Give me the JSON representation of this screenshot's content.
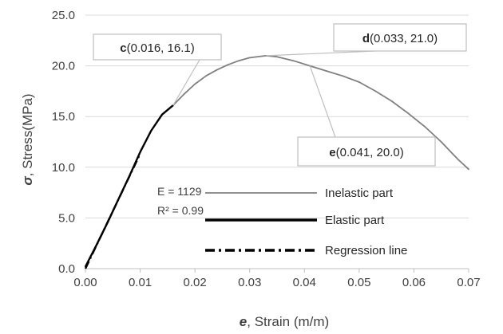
{
  "chart_data": {
    "type": "line",
    "xlabel_symbol": "e",
    "xlabel_text": ", Strain (m/m)",
    "ylabel_symbol": "σ",
    "ylabel_text": ", Stress(MPa)",
    "xlim": [
      0,
      0.07
    ],
    "ylim": [
      0,
      25
    ],
    "x_ticks": [
      {
        "value": 0,
        "label": "0.00"
      },
      {
        "value": 0.01,
        "label": "0.01"
      },
      {
        "value": 0.02,
        "label": "0.02"
      },
      {
        "value": 0.03,
        "label": "0.03"
      },
      {
        "value": 0.04,
        "label": "0.04"
      },
      {
        "value": 0.05,
        "label": "0.05"
      },
      {
        "value": 0.06,
        "label": "0.06"
      },
      {
        "value": 0.07,
        "label": "0.07"
      }
    ],
    "y_ticks": [
      {
        "value": 0,
        "label": "0.0"
      },
      {
        "value": 5,
        "label": "5.0"
      },
      {
        "value": 10,
        "label": "10.0"
      },
      {
        "value": 15,
        "label": "15.0"
      },
      {
        "value": 20,
        "label": "20.0"
      },
      {
        "value": 25,
        "label": "25.0"
      }
    ],
    "grid": "horizontal",
    "series": [
      {
        "name": "Inelastic part",
        "color": "#808080",
        "style": "solid",
        "points": [
          [
            0.016,
            16.1
          ],
          [
            0.018,
            17.2
          ],
          [
            0.02,
            18.2
          ],
          [
            0.022,
            19.0
          ],
          [
            0.024,
            19.6
          ],
          [
            0.026,
            20.1
          ],
          [
            0.028,
            20.5
          ],
          [
            0.03,
            20.8
          ],
          [
            0.033,
            21.0
          ],
          [
            0.035,
            20.9
          ],
          [
            0.038,
            20.5
          ],
          [
            0.041,
            20.0
          ],
          [
            0.044,
            19.5
          ],
          [
            0.047,
            19.0
          ],
          [
            0.05,
            18.4
          ],
          [
            0.053,
            17.5
          ],
          [
            0.056,
            16.5
          ],
          [
            0.059,
            15.3
          ],
          [
            0.062,
            14.0
          ],
          [
            0.065,
            12.5
          ],
          [
            0.068,
            10.8
          ],
          [
            0.07,
            9.8
          ]
        ]
      },
      {
        "name": "Elastic part",
        "color": "#000000",
        "style": "solid",
        "points": [
          [
            0.0,
            0.2
          ],
          [
            0.002,
            2.3
          ],
          [
            0.004,
            4.5
          ],
          [
            0.006,
            6.8
          ],
          [
            0.008,
            9.1
          ],
          [
            0.01,
            11.5
          ],
          [
            0.012,
            13.6
          ],
          [
            0.014,
            15.2
          ],
          [
            0.016,
            16.1
          ]
        ]
      },
      {
        "name": "Regression line",
        "color": "#000000",
        "style": "dash-dot",
        "points": [
          [
            0.0,
            0.0
          ],
          [
            0.0098,
            11.1
          ]
        ]
      }
    ],
    "annotations": [
      {
        "letter": "c",
        "coords": "(0.016, 16.1)",
        "point": [
          0.016,
          16.1
        ]
      },
      {
        "letter": "d",
        "coords": "(0.033, 21.0)",
        "point": [
          0.033,
          21.0
        ]
      },
      {
        "letter": "e",
        "coords": "(0.041, 20.0)",
        "point": [
          0.041,
          20.0
        ]
      }
    ],
    "equation": {
      "line1": "E = 1129",
      "line2": "R² = 0.99"
    }
  }
}
